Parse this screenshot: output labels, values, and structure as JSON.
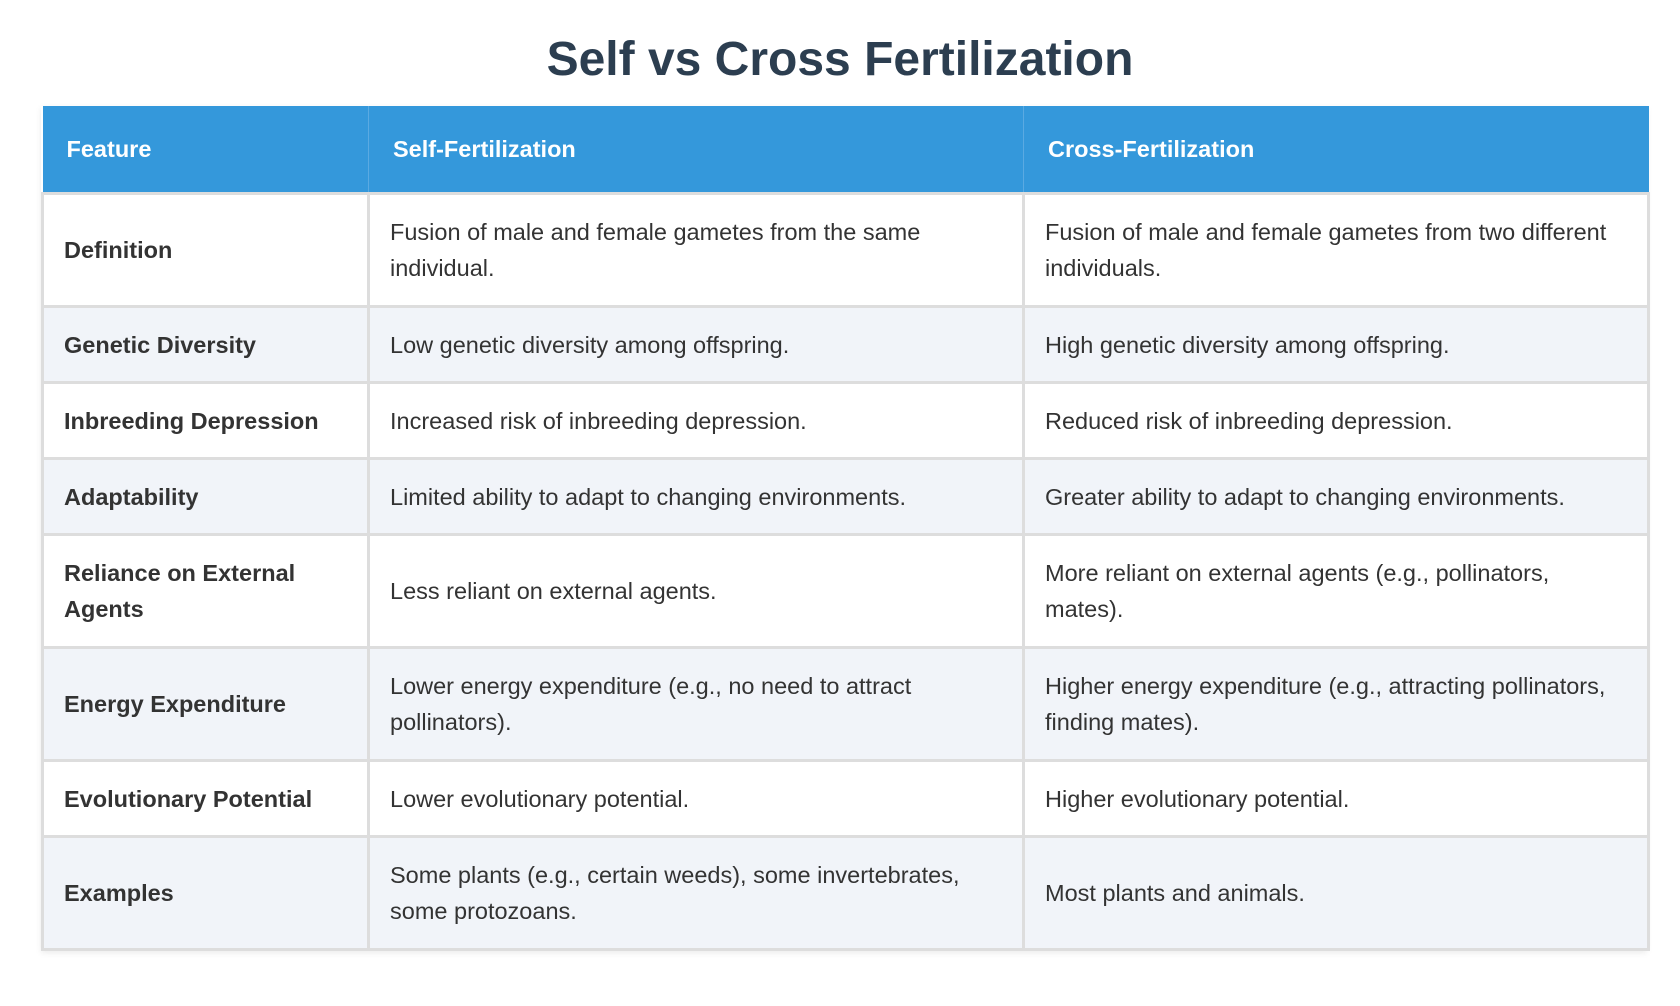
{
  "title": "Self vs Cross Fertilization",
  "colors": {
    "title": "#2c3e50",
    "header_bg": "#3498db",
    "header_text": "#ffffff",
    "row_alt_bg": "#f1f4f9",
    "border": "#dddddd",
    "body_text": "#333333"
  },
  "table": {
    "headers": [
      "Feature",
      "Self-Fertilization",
      "Cross-Fertilization"
    ],
    "rows": [
      {
        "feature": "Definition",
        "self": "Fusion of male and female gametes from the same individual.",
        "cross": "Fusion of male and female gametes from two different individuals."
      },
      {
        "feature": "Genetic Diversity",
        "self": "Low genetic diversity among offspring.",
        "cross": "High genetic diversity among offspring."
      },
      {
        "feature": "Inbreeding Depression",
        "self": "Increased risk of inbreeding depression.",
        "cross": "Reduced risk of inbreeding depression."
      },
      {
        "feature": "Adaptability",
        "self": "Limited ability to adapt to changing environments.",
        "cross": "Greater ability to adapt to changing environments."
      },
      {
        "feature": "Reliance on External Agents",
        "self": "Less reliant on external agents.",
        "cross": "More reliant on external agents (e.g., pollinators, mates)."
      },
      {
        "feature": "Energy Expenditure",
        "self": "Lower energy expenditure (e.g., no need to attract pollinators).",
        "cross": "Higher energy expenditure (e.g., attracting pollinators, finding mates)."
      },
      {
        "feature": "Evolutionary Potential",
        "self": "Lower evolutionary potential.",
        "cross": "Higher evolutionary potential."
      },
      {
        "feature": "Examples",
        "self": "Some plants (e.g., certain weeds), some invertebrates, some protozoans.",
        "cross": "Most plants and animals."
      }
    ]
  }
}
